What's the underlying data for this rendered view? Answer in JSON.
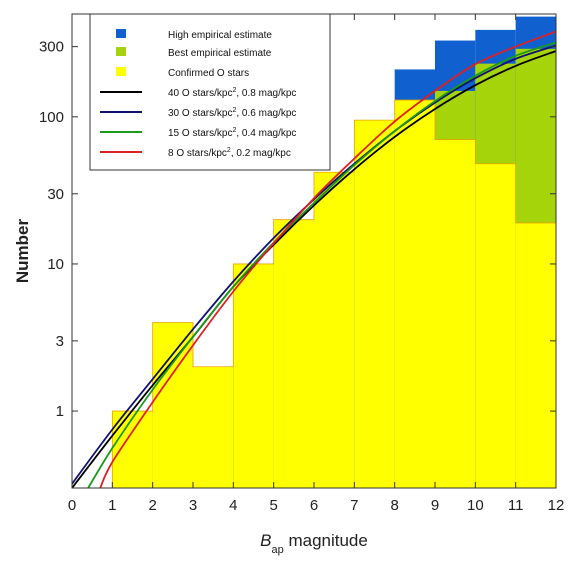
{
  "chart_data": {
    "type": "histogram with model curves",
    "xlabel": {
      "main": "B",
      "sub": "ap",
      "rest": " magnitude"
    },
    "ylabel": "Number",
    "xlim": [
      0,
      12
    ],
    "ylim": [
      0.3,
      500
    ],
    "y_scale": "log",
    "x_ticks": [
      "0",
      "1",
      "2",
      "3",
      "4",
      "5",
      "6",
      "7",
      "8",
      "9",
      "10",
      "11",
      "12"
    ],
    "y_ticks": [
      {
        "value": 1,
        "label": "1"
      },
      {
        "value": 3,
        "label": "3"
      },
      {
        "value": 10,
        "label": "10"
      },
      {
        "value": 30,
        "label": "30"
      },
      {
        "value": 100,
        "label": "100"
      },
      {
        "value": 300,
        "label": "300"
      }
    ],
    "bins": [
      {
        "x0": 1,
        "x1": 2,
        "confirmed": 1,
        "best": 1,
        "high": 1
      },
      {
        "x0": 2,
        "x1": 3,
        "confirmed": 4,
        "best": 4,
        "high": 4
      },
      {
        "x0": 3,
        "x1": 4,
        "confirmed": 2,
        "best": 2,
        "high": 2
      },
      {
        "x0": 4,
        "x1": 5,
        "confirmed": 10,
        "best": 10,
        "high": 10
      },
      {
        "x0": 5,
        "x1": 6,
        "confirmed": 20,
        "best": 20,
        "high": 20
      },
      {
        "x0": 6,
        "x1": 7,
        "confirmed": 42,
        "best": 42,
        "high": 42
      },
      {
        "x0": 7,
        "x1": 8,
        "confirmed": 95,
        "best": 95,
        "high": 95
      },
      {
        "x0": 8,
        "x1": 9,
        "confirmed": 130,
        "best": 130,
        "high": 210
      },
      {
        "x0": 9,
        "x1": 10,
        "confirmed": 70,
        "best": 150,
        "high": 330
      },
      {
        "x0": 10,
        "x1": 11,
        "confirmed": 48,
        "best": 230,
        "high": 390
      },
      {
        "x0": 11,
        "x1": 12,
        "confirmed": 19,
        "best": 290,
        "high": 480
      }
    ],
    "series": [
      {
        "name": "High empirical estimate",
        "kind": "bar",
        "color": "#1060d0"
      },
      {
        "name": "Best empirical estimate",
        "kind": "bar",
        "color": "#a6d40a"
      },
      {
        "name": "Confirmed O stars",
        "kind": "bar",
        "color": "#ffff00"
      }
    ],
    "curves": [
      {
        "label_pre": "40 O stars/kpc",
        "label_sup": "2",
        "label_post": ", 0.8 mag/kpc",
        "color": "#000000",
        "points": [
          [
            0,
            0.3
          ],
          [
            1,
            0.68
          ],
          [
            2,
            1.5
          ],
          [
            3,
            3.2
          ],
          [
            4,
            7
          ],
          [
            5,
            13.5
          ],
          [
            6,
            25
          ],
          [
            7,
            44
          ],
          [
            8,
            73
          ],
          [
            9,
            113
          ],
          [
            10,
            164
          ],
          [
            11,
            222
          ],
          [
            12,
            280
          ]
        ]
      },
      {
        "label_pre": "30 O stars/kpc",
        "label_sup": "2",
        "label_post": ", 0.6 mag/kpc",
        "color": "#101070",
        "points": [
          [
            0,
            0.32
          ],
          [
            1,
            0.75
          ],
          [
            2,
            1.65
          ],
          [
            3,
            3.6
          ],
          [
            4,
            7.6
          ],
          [
            5,
            15
          ],
          [
            6,
            27.5
          ],
          [
            7,
            48
          ],
          [
            8,
            80
          ],
          [
            9,
            125
          ],
          [
            10,
            183
          ],
          [
            11,
            248
          ],
          [
            12,
            305
          ]
        ]
      },
      {
        "label_pre": "15 O stars/kpc",
        "label_sup": "2",
        "label_post": ", 0.4 mag/kpc",
        "color": "#1a9a1a",
        "points": [
          [
            0.4,
            0.3
          ],
          [
            1,
            0.56
          ],
          [
            2,
            1.4
          ],
          [
            3,
            3.2
          ],
          [
            4,
            7
          ],
          [
            5,
            14
          ],
          [
            6,
            26
          ],
          [
            7,
            47
          ],
          [
            8,
            80
          ],
          [
            9,
            128
          ],
          [
            10,
            190
          ],
          [
            11,
            260
          ],
          [
            12,
            320
          ]
        ]
      },
      {
        "label_pre": "8 O stars/kpc",
        "label_sup": "2",
        "label_post": ", 0.2 mag/kpc",
        "color": "#e02020",
        "points": [
          [
            0.7,
            0.3
          ],
          [
            1,
            0.45
          ],
          [
            2,
            1.15
          ],
          [
            3,
            2.8
          ],
          [
            4,
            6.5
          ],
          [
            5,
            13.8
          ],
          [
            6,
            28
          ],
          [
            7,
            52
          ],
          [
            8,
            93
          ],
          [
            9,
            150
          ],
          [
            10,
            228
          ],
          [
            11,
            300
          ],
          [
            12,
            380
          ]
        ]
      }
    ],
    "legend_placement": "top-left",
    "grid": false
  }
}
